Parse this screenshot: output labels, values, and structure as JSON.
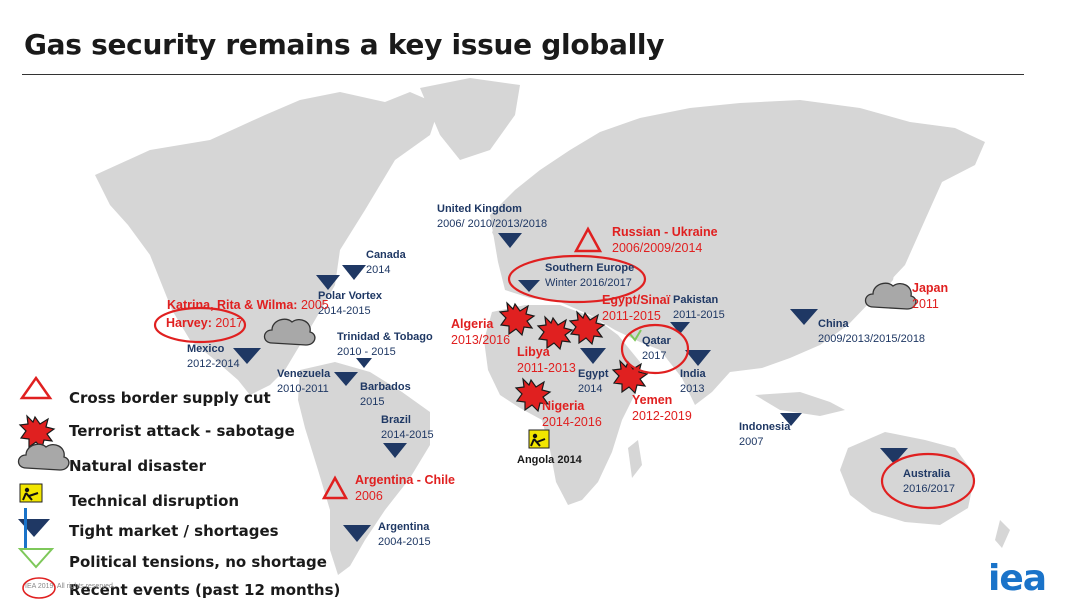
{
  "title": "Gas security remains a key issue globally",
  "colors": {
    "tight_market": "#1f3864",
    "highlight": "#e02020",
    "land": "#d6d6d6",
    "logo": "#1a73c9",
    "technical": "#f2e600"
  },
  "events": [
    {
      "id": "uk",
      "name": "United Kingdom",
      "years": "2006/ 2010/2013/2018",
      "type": "tight-market",
      "recent": false
    },
    {
      "id": "canada",
      "name": "Canada",
      "years": "2014",
      "type": "tight-market",
      "recent": false
    },
    {
      "id": "polar",
      "name": "Polar Vortex",
      "years": "2014-2015",
      "type": "tight-market",
      "recent": false
    },
    {
      "id": "katrina",
      "name": "Katrina, Rita & Wilma:",
      "years": "2005",
      "type": "natural-disaster",
      "recent": false
    },
    {
      "id": "harvey",
      "name": "Harvey:",
      "years": "2017",
      "type": "natural-disaster",
      "recent": true
    },
    {
      "id": "mexico",
      "name": "Mexico",
      "years": "2012-2014",
      "type": "tight-market",
      "recent": false
    },
    {
      "id": "trinidad",
      "name": "Trinidad & Tobago",
      "years": "2010 - 2015",
      "type": "tight-market",
      "recent": false
    },
    {
      "id": "venezuela",
      "name": "Venezuela",
      "years": "2010-2011",
      "type": "tight-market",
      "recent": false
    },
    {
      "id": "barbados",
      "name": "Barbados",
      "years": "2015",
      "type": "tight-market",
      "recent": false
    },
    {
      "id": "brazil",
      "name": "Brazil",
      "years": "2014-2015",
      "type": "tight-market",
      "recent": false
    },
    {
      "id": "argchile",
      "name": "Argentina - Chile",
      "years": "2006",
      "type": "cross-border",
      "recent": false
    },
    {
      "id": "argentina",
      "name": "Argentina",
      "years": "2004-2015",
      "type": "tight-market",
      "recent": false
    },
    {
      "id": "russia",
      "name": "Russian - Ukraine",
      "years": "2006/2009/2014",
      "type": "cross-border",
      "recent": false
    },
    {
      "id": "seurope",
      "name": "Southern Europe",
      "years": "Winter 2016/2017",
      "type": "tight-market",
      "recent": true
    },
    {
      "id": "algeria",
      "name": "Algeria",
      "years": "2013/2016",
      "type": "terrorist",
      "recent": false
    },
    {
      "id": "egyptsinai",
      "name": "Egypt/Sinaï",
      "years": "2011-2015",
      "type": "terrorist",
      "recent": false
    },
    {
      "id": "pakistan",
      "name": "Pakistan",
      "years": "2011-2015",
      "type": "tight-market",
      "recent": false
    },
    {
      "id": "libya",
      "name": "Libya",
      "years": "2011-2013",
      "type": "terrorist",
      "recent": false
    },
    {
      "id": "egypt",
      "name": "Egypt",
      "years": "2014",
      "type": "tight-market",
      "recent": false
    },
    {
      "id": "qatar",
      "name": "Qatar",
      "years": "2017",
      "type": "political",
      "recent": true
    },
    {
      "id": "india",
      "name": "India",
      "years": "2013",
      "type": "tight-market",
      "recent": false
    },
    {
      "id": "yemen",
      "name": "Yemen",
      "years": "2012-2019",
      "type": "terrorist",
      "recent": false
    },
    {
      "id": "nigeria",
      "name": "Nigeria",
      "years": "2014-2016",
      "type": "terrorist",
      "recent": false
    },
    {
      "id": "angola",
      "name": "Angola 2014",
      "years": "",
      "type": "technical",
      "recent": false
    },
    {
      "id": "china",
      "name": "China",
      "years": "2009/2013/2015/2018",
      "type": "tight-market",
      "recent": false
    },
    {
      "id": "japan",
      "name": "Japan",
      "years": "2011",
      "type": "natural-disaster",
      "recent": false
    },
    {
      "id": "indonesia",
      "name": "Indonesia",
      "years": "2007",
      "type": "tight-market",
      "recent": false
    },
    {
      "id": "australia",
      "name": "Australia",
      "years": "2016/2017",
      "type": "tight-market",
      "recent": true
    }
  ],
  "legend": [
    {
      "icon": "cross-border-triangle-icon",
      "label": "Cross border supply cut"
    },
    {
      "icon": "explosion-icon",
      "label": "Terrorist attack - sabotage"
    },
    {
      "icon": "cloud-icon",
      "label": "Natural disaster"
    },
    {
      "icon": "worker-sign-icon",
      "label": "Technical disruption"
    },
    {
      "icon": "down-triangle-icon",
      "label": "Tight market / shortages"
    },
    {
      "icon": "green-triangle-icon",
      "label": "Political tensions, no shortage"
    },
    {
      "icon": "red-ellipse-icon",
      "label": "Recent events (past 12 months)"
    }
  ],
  "footer": "IEA 2019. All rights reserved.",
  "logo": "iea"
}
